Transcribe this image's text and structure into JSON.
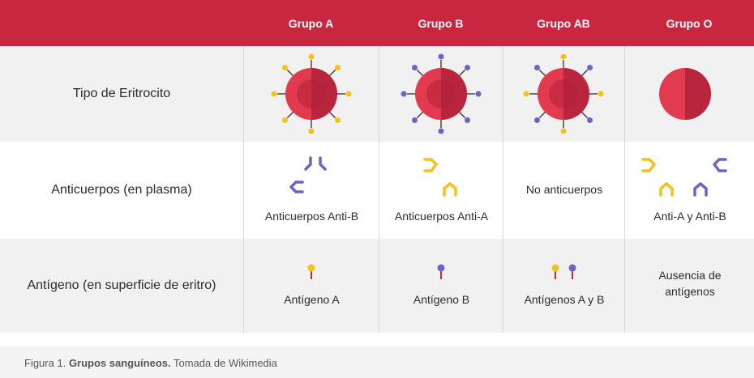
{
  "header": {
    "columns": [
      "Grupo A",
      "Grupo B",
      "Grupo AB",
      "Grupo O"
    ]
  },
  "rows": [
    {
      "label": "Tipo de Eritrocito"
    },
    {
      "label": "Anticuerpos (en plasma)"
    },
    {
      "label": "Antígeno (en superficie de eritro)"
    }
  ],
  "antibodies": {
    "a": "Anticuerpos Anti-B",
    "b": "Anticuerpos Anti-A",
    "ab": "No anticuerpos",
    "o": "Anti-A y Anti-B"
  },
  "antigens": {
    "a": "Antígeno A",
    "b": "Antígeno B",
    "ab": "Antígenos A y B",
    "o_line1": "Ausencia de",
    "o_line2": "antígenos"
  },
  "caption": {
    "prefix": "Figura 1.",
    "bold": "Grupos sanguíneos.",
    "suffix": "Tomada de Wikimedia"
  },
  "colors": {
    "header_bg": "#c8273f",
    "cell_red": "#e23a4e",
    "cell_dark": "#b0223a",
    "antigen_a": "#f5c21b",
    "antigen_b": "#6d63c6",
    "spike": "#4a4a4a"
  }
}
